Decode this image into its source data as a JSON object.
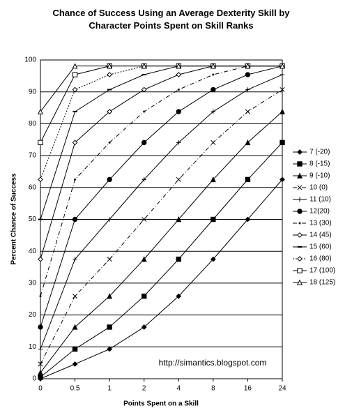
{
  "chart_data": {
    "type": "line",
    "title": "Chance of Success Using an Average Dexterity Skill by Character Points Spent on Skill Ranks",
    "x_label": "Points Spent on a Skill",
    "y_label": "Percent Chance of Success",
    "annotation": "http://simantics.blogspot.com",
    "categories": [
      "0",
      "0.5",
      "1",
      "2",
      "4",
      "8",
      "16",
      "24"
    ],
    "ylim": [
      0,
      100
    ],
    "yticks": [
      0,
      10,
      20,
      30,
      40,
      50,
      60,
      70,
      80,
      90,
      100
    ],
    "grid": true,
    "legend": "right",
    "series": [
      {
        "name": "7 (-20)",
        "color": "#000000",
        "marker": "diamond",
        "dash": "solid",
        "values": [
          0,
          4.6,
          9.3,
          16.2,
          25.9,
          37.5,
          50,
          62.5
        ]
      },
      {
        "name": "8 (-15)",
        "color": "#000000",
        "marker": "square",
        "dash": "solid",
        "values": [
          0.5,
          9.3,
          16.2,
          25.9,
          37.5,
          50,
          62.5,
          74.1
        ]
      },
      {
        "name": "9 (-10)",
        "color": "#000000",
        "marker": "triangle",
        "dash": "solid",
        "values": [
          1.9,
          16.2,
          25.9,
          37.5,
          50,
          62.5,
          74.1,
          83.8
        ]
      },
      {
        "name": "10 (0)",
        "color": "#000000",
        "marker": "x",
        "dash": "dashdot",
        "values": [
          4.6,
          25.9,
          37.5,
          50,
          62.5,
          74.1,
          83.8,
          90.7
        ]
      },
      {
        "name": "11 (10)",
        "color": "#000000",
        "marker": "plus",
        "dash": "solid",
        "values": [
          9.3,
          37.5,
          50,
          62.5,
          74.1,
          83.8,
          90.7,
          95.4
        ]
      },
      {
        "name": "12(20)",
        "color": "#000000",
        "marker": "circle",
        "dash": "solid",
        "values": [
          16.2,
          50,
          62.5,
          74.1,
          83.8,
          90.7,
          95.4,
          98.1
        ]
      },
      {
        "name": "13 (30)",
        "color": "#000000",
        "marker": "dot",
        "dash": "dashdot",
        "values": [
          25.9,
          62.5,
          74.1,
          83.8,
          90.7,
          95.4,
          98.1,
          98.1
        ]
      },
      {
        "name": "14 (45)",
        "color": "#000000",
        "marker": "diamond-open",
        "dash": "solid",
        "values": [
          37.5,
          74.1,
          83.8,
          90.7,
          95.4,
          98.1,
          98.1,
          98.1
        ]
      },
      {
        "name": "15 (60)",
        "color": "#000000",
        "marker": "dash",
        "dash": "solid",
        "values": [
          50,
          83.8,
          90.7,
          95.4,
          98.1,
          98.1,
          98.1,
          98.1
        ]
      },
      {
        "name": "16 (80)",
        "color": "#000000",
        "marker": "diamond-open",
        "dash": "dotted",
        "values": [
          62.5,
          90.7,
          95.4,
          98.1,
          98.1,
          98.1,
          98.1,
          98.1
        ]
      },
      {
        "name": "17 (100)",
        "color": "#000000",
        "marker": "square-open",
        "dash": "solid",
        "values": [
          74.1,
          95.4,
          98.1,
          98.1,
          98.1,
          98.1,
          98.1,
          98.1
        ]
      },
      {
        "name": "18 (125)",
        "color": "#000000",
        "marker": "triangle-open",
        "dash": "solid",
        "values": [
          83.8,
          98.1,
          98.1,
          98.1,
          98.1,
          98.1,
          98.1,
          98.1
        ]
      }
    ]
  }
}
